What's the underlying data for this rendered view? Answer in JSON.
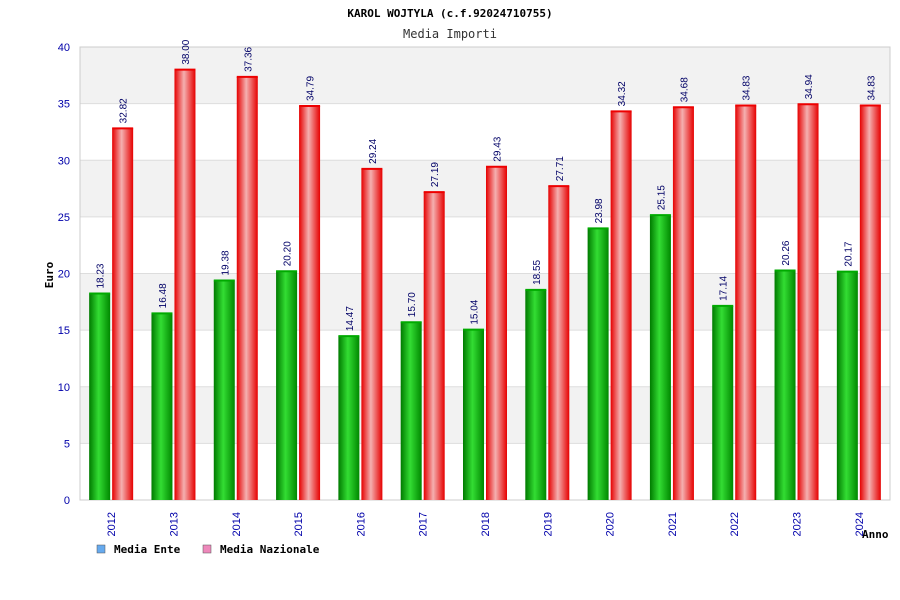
{
  "chart_data": {
    "type": "bar",
    "title": "KAROL WOJTYLA (c.f.92024710755)",
    "subtitle": "Media Importi",
    "xlabel": "Anno",
    "ylabel": "Euro",
    "ylim": [
      0,
      40
    ],
    "yticks": [
      "0",
      "5",
      "10",
      "15",
      "20",
      "25",
      "30",
      "35",
      "40"
    ],
    "grid": true,
    "legend_position": "bottom-left",
    "categories": [
      "2012",
      "2013",
      "2014",
      "2015",
      "2016",
      "2017",
      "2018",
      "2019",
      "2020",
      "2021",
      "2022",
      "2023",
      "2024"
    ],
    "series": [
      {
        "name": "Media Ente",
        "color": "#00aa00",
        "legend_color": "#66aaee",
        "values": [
          18.23,
          16.48,
          19.38,
          20.2,
          14.47,
          15.7,
          15.04,
          18.55,
          23.98,
          25.15,
          17.14,
          20.26,
          20.17
        ],
        "labels": [
          "18.23",
          "16.48",
          "19.38",
          "20.20",
          "14.47",
          "15.70",
          "15.04",
          "18.55",
          "23.98",
          "25.15",
          "17.14",
          "20.26",
          "20.17"
        ]
      },
      {
        "name": "Media Nazionale",
        "color": "#ee0000",
        "legend_color": "#ee88bb",
        "values": [
          32.82,
          38.0,
          37.36,
          34.79,
          29.24,
          27.19,
          29.43,
          27.71,
          34.32,
          34.68,
          34.83,
          34.94,
          34.83
        ],
        "labels": [
          "32.82",
          "38.00",
          "37.36",
          "34.79",
          "29.24",
          "27.19",
          "29.43",
          "27.71",
          "34.32",
          "34.68",
          "34.83",
          "34.94",
          "34.83"
        ]
      }
    ]
  }
}
